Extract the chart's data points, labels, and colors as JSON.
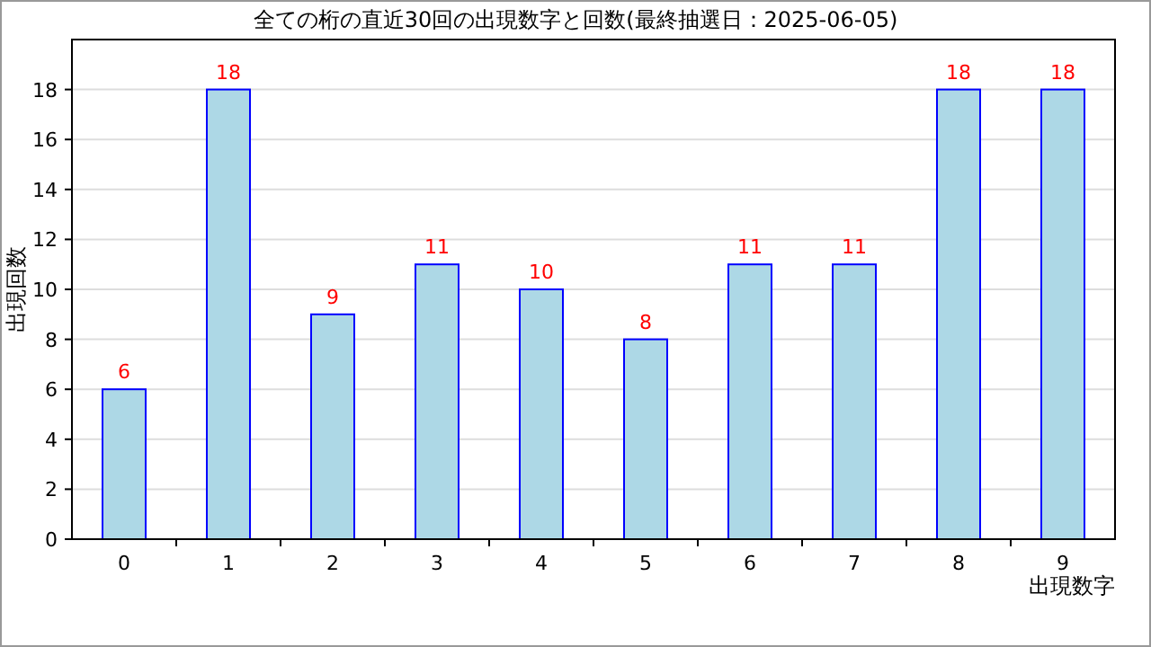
{
  "chart_data": {
    "type": "bar",
    "title": "全ての桁の直近30回の出現数字と回数(最終抽選日：2025-06-05)",
    "xlabel": "出現数字",
    "ylabel": "出現回数",
    "categories": [
      "0",
      "1",
      "2",
      "3",
      "4",
      "5",
      "6",
      "7",
      "8",
      "9"
    ],
    "values": [
      6,
      18,
      9,
      11,
      10,
      8,
      11,
      11,
      18,
      18
    ],
    "color": "#add8e6",
    "ylim": [
      0,
      20
    ],
    "yticks": [
      0,
      2,
      4,
      6,
      8,
      10,
      12,
      14,
      16,
      18
    ],
    "grid": "y",
    "data_labels": true
  }
}
